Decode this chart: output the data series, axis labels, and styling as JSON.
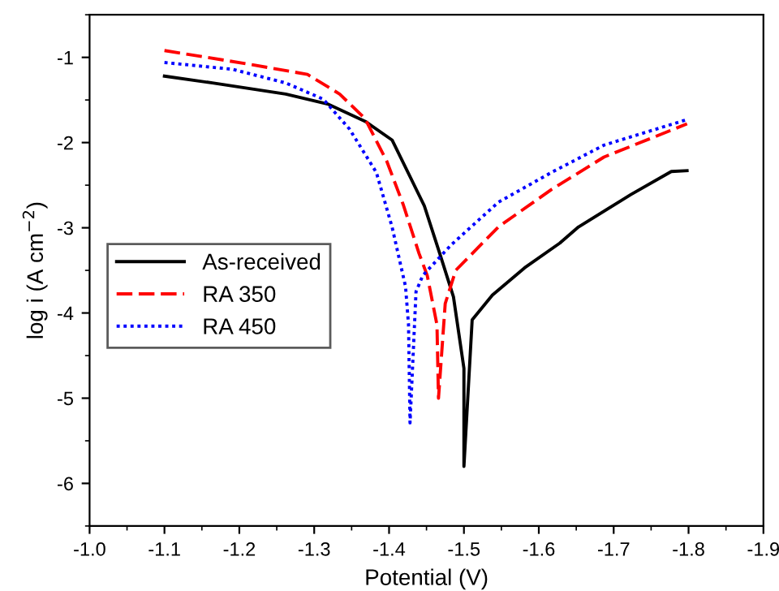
{
  "chart_data": {
    "type": "line",
    "xlabel": "Potential (V)",
    "ylabel": "log i (A cm$^{−2}$)",
    "xlim": [
      -1.0,
      -1.9
    ],
    "xticks": [
      {
        "value": -1.0,
        "label": "-1.0"
      },
      {
        "value": -1.1,
        "label": "-1.1"
      },
      {
        "value": -1.2,
        "label": "-1.2"
      },
      {
        "value": -1.3,
        "label": "-1.3"
      },
      {
        "value": -1.4,
        "label": "-1.4"
      },
      {
        "value": -1.5,
        "label": "-1.5"
      },
      {
        "value": -1.6,
        "label": "-1.6"
      },
      {
        "value": -1.7,
        "label": "-1.7"
      },
      {
        "value": -1.8,
        "label": "-1.8"
      },
      {
        "value": -1.9,
        "label": "-1.9"
      }
    ],
    "ylim": [
      -6.5,
      -0.5
    ],
    "yticks": [
      -6,
      -5,
      -4,
      -3,
      -2,
      -1
    ],
    "legend": "center left",
    "grid": false,
    "series": [
      {
        "name": "As-received",
        "color": "#000000",
        "line_style": "solid",
        "x": [
          -1.1,
          -1.164,
          -1.262,
          -1.319,
          -1.368,
          -1.404,
          -1.447,
          -1.468,
          -1.486,
          -1.5,
          -1.5,
          -1.511,
          -1.538,
          -1.581,
          -1.628,
          -1.653,
          -1.723,
          -1.777,
          -1.798
        ],
        "values": [
          -1.22,
          -1.3,
          -1.43,
          -1.55,
          -1.75,
          -1.97,
          -2.74,
          -3.31,
          -3.81,
          -4.65,
          -5.8,
          -4.08,
          -3.79,
          -3.47,
          -3.18,
          -2.99,
          -2.61,
          -2.34,
          -2.33
        ]
      },
      {
        "name": "RA 350",
        "color": "#ff0000",
        "line_style": "dashed",
        "x": [
          -1.1,
          -1.213,
          -1.291,
          -1.334,
          -1.368,
          -1.397,
          -1.419,
          -1.44,
          -1.451,
          -1.464,
          -1.466,
          -1.475,
          -1.489,
          -1.546,
          -1.617,
          -1.687,
          -1.798
        ],
        "values": [
          -0.92,
          -1.08,
          -1.2,
          -1.43,
          -1.72,
          -2.22,
          -2.73,
          -3.3,
          -3.56,
          -4.14,
          -5.0,
          -3.89,
          -3.5,
          -2.99,
          -2.55,
          -2.17,
          -1.78
        ]
      },
      {
        "name": "RA 450",
        "color": "#0000ff",
        "line_style": "dotted",
        "x": [
          -1.1,
          -1.191,
          -1.262,
          -1.312,
          -1.347,
          -1.383,
          -1.404,
          -1.422,
          -1.426,
          -1.428,
          -1.436,
          -1.445,
          -1.483,
          -1.546,
          -1.617,
          -1.687,
          -1.798
        ],
        "values": [
          -1.06,
          -1.14,
          -1.3,
          -1.49,
          -1.84,
          -2.35,
          -2.99,
          -3.69,
          -4.14,
          -5.29,
          -3.75,
          -3.56,
          -3.2,
          -2.7,
          -2.35,
          -2.03,
          -1.73
        ]
      }
    ]
  }
}
